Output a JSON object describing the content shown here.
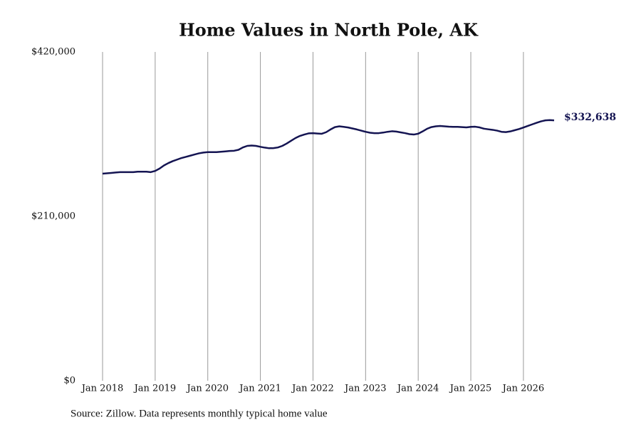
{
  "chart_data": {
    "type": "line",
    "title": "Home Values in North Pole, AK",
    "source": "Source: Zillow. Data represents monthly typical home value",
    "x": [
      "2018-01",
      "2018-02",
      "2018-03",
      "2018-04",
      "2018-05",
      "2018-06",
      "2018-07",
      "2018-08",
      "2018-09",
      "2018-10",
      "2018-11",
      "2018-12",
      "2019-01",
      "2019-02",
      "2019-03",
      "2019-04",
      "2019-05",
      "2019-06",
      "2019-07",
      "2019-08",
      "2019-09",
      "2019-10",
      "2019-11",
      "2019-12",
      "2020-01",
      "2020-02",
      "2020-03",
      "2020-04",
      "2020-05",
      "2020-06",
      "2020-07",
      "2020-08",
      "2020-09",
      "2020-10",
      "2020-11",
      "2020-12",
      "2021-01",
      "2021-02",
      "2021-03",
      "2021-04",
      "2021-05",
      "2021-06",
      "2021-07",
      "2021-08",
      "2021-09",
      "2021-10",
      "2021-11",
      "2021-12",
      "2022-01",
      "2022-02",
      "2022-03",
      "2022-04",
      "2022-05",
      "2022-06",
      "2022-07",
      "2022-08",
      "2022-09",
      "2022-10",
      "2022-11",
      "2022-12",
      "2023-01",
      "2023-02",
      "2023-03",
      "2023-04",
      "2023-05",
      "2023-06",
      "2023-07",
      "2023-08",
      "2023-09",
      "2023-10",
      "2023-11",
      "2023-12",
      "2024-01",
      "2024-02",
      "2024-03",
      "2024-04",
      "2024-05",
      "2024-06",
      "2024-07",
      "2024-08",
      "2024-09",
      "2024-10",
      "2024-11",
      "2024-12",
      "2025-01",
      "2025-02",
      "2025-03",
      "2025-04",
      "2025-05",
      "2025-06",
      "2025-07",
      "2025-08",
      "2025-09",
      "2025-10",
      "2025-11",
      "2025-12",
      "2026-01",
      "2026-02",
      "2026-03",
      "2026-04",
      "2026-05",
      "2026-06",
      "2026-07",
      "2026-08"
    ],
    "series": [
      {
        "name": "Typical home value",
        "color": "#141452",
        "values": [
          264500,
          265000,
          265500,
          266000,
          266500,
          266500,
          266500,
          266500,
          267000,
          267000,
          267000,
          266500,
          268000,
          271000,
          275000,
          278000,
          280500,
          282500,
          284500,
          286000,
          287500,
          289000,
          290500,
          291500,
          292000,
          292000,
          292000,
          292500,
          293000,
          293500,
          293800,
          295000,
          298000,
          300000,
          300500,
          300000,
          298800,
          297800,
          297000,
          297200,
          298000,
          300000,
          303000,
          306500,
          310000,
          312700,
          314500,
          316000,
          316200,
          315800,
          315500,
          317500,
          321000,
          324000,
          325000,
          324300,
          323500,
          322300,
          321000,
          319500,
          318000,
          316800,
          316300,
          316300,
          317000,
          318000,
          318700,
          318300,
          317300,
          316300,
          315000,
          314500,
          315600,
          318500,
          321800,
          324000,
          325000,
          325500,
          325000,
          324500,
          324300,
          324300,
          324000,
          323600,
          324300,
          324500,
          323600,
          322000,
          321200,
          320500,
          319500,
          318000,
          317600,
          318500,
          320000,
          321500,
          323500,
          325500,
          327500,
          329500,
          331300,
          332600,
          333000,
          332638
        ],
        "value_labels": [
          null,
          null,
          null,
          null,
          null,
          null,
          null,
          null,
          null,
          null,
          null,
          null,
          null,
          null,
          null,
          null,
          null,
          null,
          null,
          null,
          null,
          null,
          null,
          null,
          null,
          null,
          null,
          null,
          null,
          null,
          null,
          null,
          null,
          null,
          null,
          null,
          null,
          null,
          null,
          null,
          null,
          null,
          null,
          null,
          null,
          null,
          null,
          null,
          null,
          null,
          null,
          null,
          null,
          null,
          null,
          null,
          null,
          null,
          null,
          null,
          null,
          null,
          null,
          null,
          null,
          null,
          null,
          null,
          null,
          null,
          null,
          null,
          null,
          null,
          null,
          null,
          null,
          null,
          null,
          null,
          null,
          null,
          null,
          null,
          null,
          null,
          null,
          null,
          null,
          null,
          null,
          null,
          null,
          null,
          null,
          null,
          null,
          null,
          null,
          null,
          null,
          null,
          null,
          "$332,638"
        ]
      }
    ],
    "xlim": [
      "2018-01",
      "2026-08"
    ],
    "xticks": [
      {
        "value": "2018-01",
        "label": "Jan 2018"
      },
      {
        "value": "2019-01",
        "label": "Jan 2019"
      },
      {
        "value": "2020-01",
        "label": "Jan 2020"
      },
      {
        "value": "2021-01",
        "label": "Jan 2021"
      },
      {
        "value": "2022-01",
        "label": "Jan 2022"
      },
      {
        "value": "2023-01",
        "label": "Jan 2023"
      },
      {
        "value": "2024-01",
        "label": "Jan 2024"
      },
      {
        "value": "2025-01",
        "label": "Jan 2025"
      },
      {
        "value": "2026-01",
        "label": "Jan 2026"
      }
    ],
    "ylim": [
      0,
      420000
    ],
    "yticks": [
      {
        "value": 0,
        "label": "$0"
      },
      {
        "value": 210000,
        "label": "$210,000"
      },
      {
        "value": 420000,
        "label": "$420,000"
      }
    ],
    "grid": "x"
  }
}
